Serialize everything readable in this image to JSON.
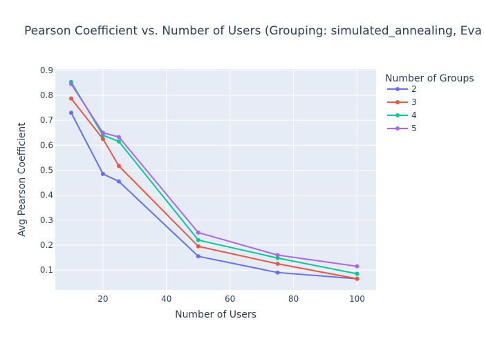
{
  "chart_data": {
    "type": "line",
    "title": "Pearson Coefficient vs. Number of Users (Grouping: simulated_annealing, Eva",
    "xlabel": "Number of Users",
    "ylabel": "Avg Pearson Coefficient",
    "xlim": [
      5,
      106
    ],
    "ylim": [
      0.02,
      0.905
    ],
    "x_ticks": [
      20,
      40,
      60,
      80,
      100
    ],
    "x_tick_labels": [
      "20",
      "40",
      "60",
      "80",
      "100"
    ],
    "y_ticks": [
      0.1,
      0.2,
      0.3,
      0.4,
      0.5,
      0.6,
      0.7,
      0.8,
      0.9
    ],
    "y_tick_labels": [
      "0.1",
      "0.2",
      "0.3",
      "0.4",
      "0.5",
      "0.6",
      "0.7",
      "0.8",
      "0.9"
    ],
    "grid": true,
    "legend_title": "Number of Groups",
    "legend_position": "right",
    "x": [
      10,
      20,
      25,
      50,
      75,
      100
    ],
    "series": [
      {
        "name": "2",
        "color": "#636efa",
        "values": [
          0.73,
          0.485,
          0.455,
          0.155,
          0.09,
          0.065
        ]
      },
      {
        "name": "3",
        "color": "#ef553b",
        "values": [
          0.787,
          0.625,
          0.517,
          0.195,
          0.125,
          0.065
        ]
      },
      {
        "name": "4",
        "color": "#00cc96",
        "values": [
          0.853,
          0.64,
          0.615,
          0.22,
          0.148,
          0.085
        ]
      },
      {
        "name": "5",
        "color": "#ab63fa",
        "values": [
          0.845,
          0.65,
          0.633,
          0.25,
          0.16,
          0.115
        ]
      }
    ]
  }
}
